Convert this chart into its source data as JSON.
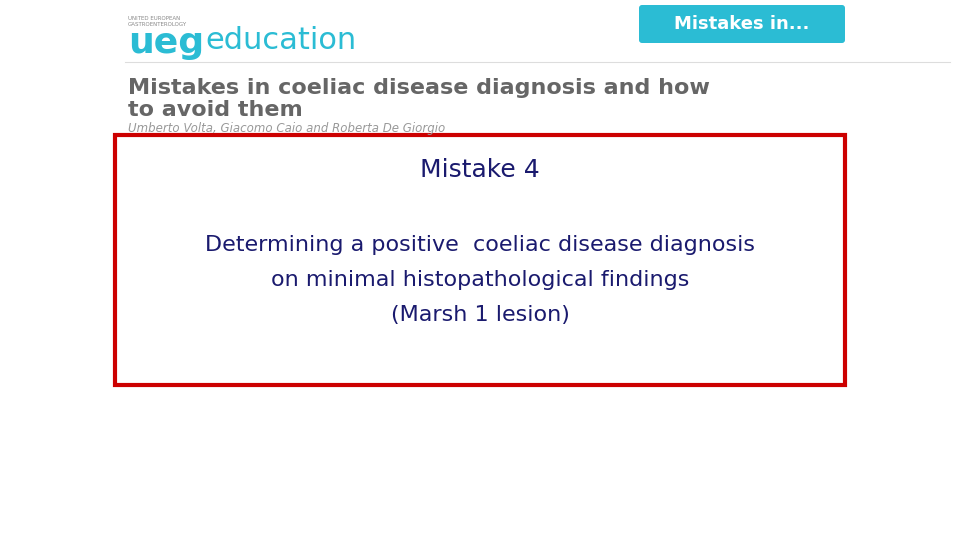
{
  "bg_color": "#ffffff",
  "fig_width": 9.6,
  "fig_height": 5.4,
  "dpi": 100,
  "ueg_bold": "ueg",
  "ueg_light": "education",
  "ueg_color": "#2bbcd4",
  "mistakes_badge_text": "Mistakes in...",
  "mistakes_badge_bg": "#2bbcd4",
  "mistakes_badge_color": "#ffffff",
  "slide_title_line1": "Mistakes in coeliac disease diagnosis and how",
  "slide_title_line2": "to avoid them",
  "slide_title_color": "#666666",
  "authors_text": "Umberto Volta, Giacomo Caio and Roberta De Giorgio",
  "authors_color": "#999999",
  "box_border_color": "#cc0000",
  "box_bg_color": "#ffffff",
  "mistake_label": "Mistake 4",
  "mistake_label_color": "#1a1a6e",
  "main_text_line1": "Determining a positive  coeliac disease diagnosis",
  "main_text_line2": "on minimal histopathological findings",
  "main_text_line3": "(Marsh 1 lesion)",
  "main_text_color": "#1a1a6e",
  "separator_color": "#dddddd",
  "logo_small_text": "UNITED EUROPEAN\nGASTROENTEROLOGY",
  "logo_small_color": "#888888"
}
